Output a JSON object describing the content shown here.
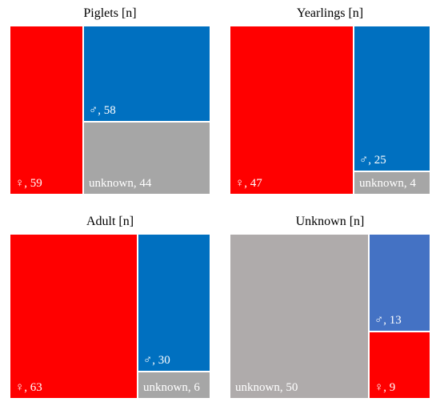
{
  "chart_data": [
    {
      "type": "treemap",
      "title": "Piglets [n]",
      "items": [
        {
          "category": "female",
          "symbol": "♀",
          "value": 59,
          "label": "♀, 59",
          "color": "#ff0000"
        },
        {
          "category": "male",
          "symbol": "♂",
          "value": 58,
          "label": "♂, 58",
          "color": "#0070c0"
        },
        {
          "category": "unknown",
          "value": 44,
          "label": "unknown, 44",
          "color": "#a6a6a6"
        }
      ]
    },
    {
      "type": "treemap",
      "title": "Yearlings [n]",
      "items": [
        {
          "category": "female",
          "symbol": "♀",
          "value": 47,
          "label": "♀, 47",
          "color": "#ff0000"
        },
        {
          "category": "male",
          "symbol": "♂",
          "value": 25,
          "label": "♂, 25",
          "color": "#0070c0"
        },
        {
          "category": "unknown",
          "value": 4,
          "label": "unknown, 4",
          "color": "#a6a6a6"
        }
      ]
    },
    {
      "type": "treemap",
      "title": "Adult [n]",
      "items": [
        {
          "category": "female",
          "symbol": "♀",
          "value": 63,
          "label": "♀, 63",
          "color": "#ff0000"
        },
        {
          "category": "male",
          "symbol": "♂",
          "value": 30,
          "label": "♂, 30",
          "color": "#0070c0"
        },
        {
          "category": "unknown",
          "value": 6,
          "label": "unknown, 6",
          "color": "#a6a6a6"
        }
      ]
    },
    {
      "type": "treemap",
      "title": "Unknown [n]",
      "items": [
        {
          "category": "unknown",
          "value": 50,
          "label": "unknown, 50",
          "color": "#afabab"
        },
        {
          "category": "male",
          "symbol": "♂",
          "value": 13,
          "label": "♂, 13",
          "color": "#4472c4"
        },
        {
          "category": "female",
          "symbol": "♀",
          "value": 9,
          "label": "♀, 9",
          "color": "#ff0000"
        }
      ]
    }
  ]
}
